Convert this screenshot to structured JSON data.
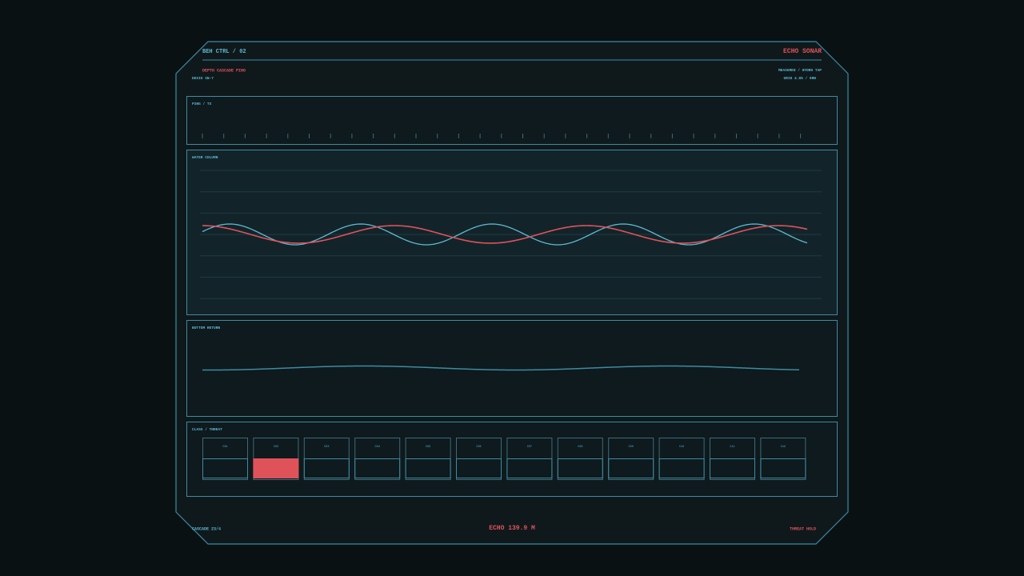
{
  "header": {
    "title": "BEH CTRL / 02",
    "brand": "ECHO SONAR",
    "subtitle": "DEPTH CASCADE PING",
    "designation": "DESIG SN-7",
    "mode": "MEASURED / HYDRO TAP",
    "grid": "GRID 4.85 / 9RN"
  },
  "panels": {
    "ping": "PING / TX",
    "water": "WATER COLUMN",
    "bottom": "BOTTOM RETURN",
    "classes": "CLASS / THREAT"
  },
  "cells": [
    {
      "label": "C01",
      "state": "idle"
    },
    {
      "label": "C02",
      "state": "alert"
    },
    {
      "label": "C03",
      "state": "idle"
    },
    {
      "label": "C04",
      "state": "idle"
    },
    {
      "label": "C05",
      "state": "idle"
    },
    {
      "label": "C06",
      "state": "idle"
    },
    {
      "label": "C07",
      "state": "idle"
    },
    {
      "label": "C08",
      "state": "idle"
    },
    {
      "label": "C09",
      "state": "idle"
    },
    {
      "label": "C10",
      "state": "idle"
    },
    {
      "label": "C11",
      "state": "idle"
    },
    {
      "label": "C12",
      "state": "idle"
    }
  ],
  "footer": {
    "left": "CASCADE 23/4",
    "center": "ECHO 139.9 M",
    "right": "THREAT HOLD"
  }
}
